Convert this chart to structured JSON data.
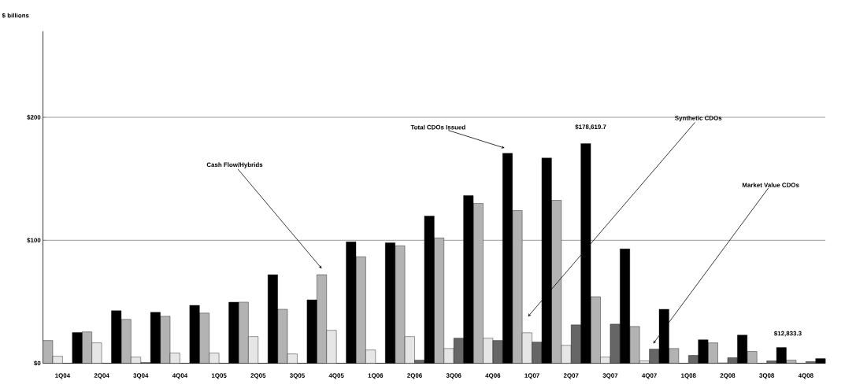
{
  "chart_data": {
    "type": "bar",
    "ylabel": "$ billions",
    "categories": [
      "1Q04",
      "2Q04",
      "3Q04",
      "4Q04",
      "1Q05",
      "2Q05",
      "3Q05",
      "4Q05",
      "1Q06",
      "2Q06",
      "3Q06",
      "4Q06",
      "1Q07",
      "2Q07",
      "3Q07",
      "4Q07",
      "1Q08",
      "2Q08",
      "3Q08",
      "4Q08"
    ],
    "series": [
      {
        "color": "#b3b3b3",
        "values": [
          18.5,
          25.5,
          35.7,
          38.2,
          40.8,
          49.7,
          43.9,
          72,
          86.6,
          95.5,
          101.9,
          130,
          124.2,
          132.5,
          54.1,
          29.9,
          12,
          16.6,
          9.6,
          2.5
        ]
      },
      {
        "color": "#e6e6e6",
        "values": [
          5.7,
          16.6,
          5,
          8.3,
          8.3,
          21.7,
          7.6,
          26.8,
          10.8,
          21.7,
          12,
          20.4,
          24.8,
          14.6,
          5,
          1.9,
          null,
          0.3,
          null,
          null
        ]
      },
      {
        "color": "#666666",
        "values": [
          null,
          null,
          0.6,
          null,
          null,
          null,
          null,
          null,
          null,
          2.5,
          20.4,
          18.5,
          17.2,
          31.2,
          31.8,
          11.5,
          6.4,
          4.5,
          1.9,
          1.3
        ]
      },
      {
        "color": "#000000",
        "values": [
          25,
          42.7,
          41.4,
          47.1,
          49.7,
          72,
          51.6,
          98.7,
          98,
          119.7,
          136.3,
          170.7,
          166.9,
          178.6,
          93,
          43.9,
          19.1,
          22.9,
          12.8,
          3.8
        ]
      }
    ],
    "ylim": [
      0,
      270
    ],
    "yticks": [
      {
        "value": 0,
        "label": "$0"
      },
      {
        "value": 100,
        "label": "$100"
      },
      {
        "value": 200,
        "label": "$200"
      }
    ],
    "grid": "y",
    "annotations": [
      "Cash Flow/Hybrids",
      "Total CDOs Issued",
      "Synthetic CDOs",
      "Market Value CDOs",
      "$178,619.7",
      "$12,833.3"
    ]
  }
}
